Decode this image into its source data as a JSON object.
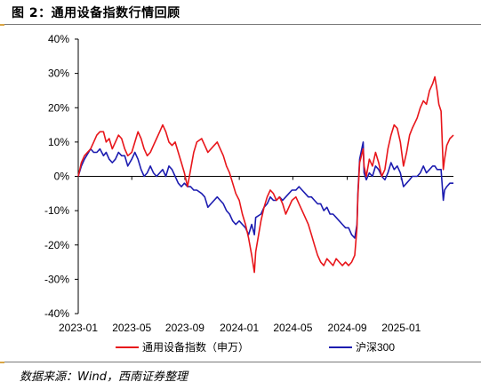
{
  "figure": {
    "title": "图 2：通用设备指数行情回顾",
    "source": "数据来源：Wind，西南证券整理"
  },
  "colors": {
    "series_1": "#e8161b",
    "series_2": "#1c1cb0",
    "axis": "#000000",
    "rule": "#7a7a7a",
    "corner_mark": "#d9a544"
  },
  "chart_data": {
    "type": "line",
    "title": "",
    "xlabel": "",
    "ylabel": "",
    "y_unit": "%",
    "ylim": [
      -40,
      40
    ],
    "y_ticks": [
      -40,
      -30,
      -20,
      -10,
      0,
      10,
      20,
      30,
      40
    ],
    "y_tick_labels": [
      "-40%",
      "-30%",
      "-20%",
      "-10%",
      "0%",
      "10%",
      "20%",
      "30%",
      "40%"
    ],
    "xlim": [
      "2023-01-03",
      "2025-04-30"
    ],
    "x_ticks": [
      "2023-01",
      "2023-05",
      "2023-09",
      "2024-01",
      "2024-05",
      "2024-09",
      "2025-01"
    ],
    "x_tick_dates": [
      "2023-01-03",
      "2023-05-04",
      "2023-09-01",
      "2024-01-02",
      "2024-05-02",
      "2024-09-02",
      "2025-01-02"
    ],
    "grid": false,
    "legend_position": "bottom",
    "series": [
      {
        "name": "通用设备指数（申万）",
        "color": "#e8161b",
        "points": [
          [
            "2023-01-03",
            0
          ],
          [
            "2023-01-10",
            4
          ],
          [
            "2023-01-17",
            6
          ],
          [
            "2023-01-31",
            8
          ],
          [
            "2023-02-07",
            10
          ],
          [
            "2023-02-14",
            12
          ],
          [
            "2023-02-21",
            13
          ],
          [
            "2023-03-01",
            13
          ],
          [
            "2023-03-07",
            10
          ],
          [
            "2023-03-14",
            11
          ],
          [
            "2023-03-21",
            8
          ],
          [
            "2023-03-28",
            10
          ],
          [
            "2023-04-04",
            12
          ],
          [
            "2023-04-11",
            11
          ],
          [
            "2023-04-18",
            8
          ],
          [
            "2023-04-25",
            6
          ],
          [
            "2023-05-04",
            7
          ],
          [
            "2023-05-11",
            10
          ],
          [
            "2023-05-18",
            13
          ],
          [
            "2023-05-25",
            11
          ],
          [
            "2023-06-01",
            8
          ],
          [
            "2023-06-08",
            6
          ],
          [
            "2023-06-15",
            7
          ],
          [
            "2023-06-22",
            9
          ],
          [
            "2023-06-29",
            11
          ],
          [
            "2023-07-06",
            13
          ],
          [
            "2023-07-13",
            15
          ],
          [
            "2023-07-20",
            13
          ],
          [
            "2023-07-27",
            10
          ],
          [
            "2023-08-03",
            9
          ],
          [
            "2023-08-10",
            10
          ],
          [
            "2023-08-17",
            7
          ],
          [
            "2023-08-24",
            4
          ],
          [
            "2023-08-31",
            1
          ],
          [
            "2023-09-07",
            -3
          ],
          [
            "2023-09-14",
            2
          ],
          [
            "2023-09-21",
            7
          ],
          [
            "2023-09-28",
            10
          ],
          [
            "2023-10-09",
            11
          ],
          [
            "2023-10-16",
            9
          ],
          [
            "2023-10-23",
            7
          ],
          [
            "2023-10-30",
            8
          ],
          [
            "2023-11-06",
            9
          ],
          [
            "2023-11-13",
            10
          ],
          [
            "2023-11-20",
            8
          ],
          [
            "2023-11-27",
            6
          ],
          [
            "2023-12-04",
            3
          ],
          [
            "2023-12-11",
            1
          ],
          [
            "2023-12-18",
            -2
          ],
          [
            "2023-12-25",
            -5
          ],
          [
            "2024-01-02",
            -7
          ],
          [
            "2024-01-09",
            -11
          ],
          [
            "2024-01-16",
            -14
          ],
          [
            "2024-01-23",
            -18
          ],
          [
            "2024-01-30",
            -23
          ],
          [
            "2024-02-05",
            -28
          ],
          [
            "2024-02-08",
            -22
          ],
          [
            "2024-02-20",
            -13
          ],
          [
            "2024-02-27",
            -9
          ],
          [
            "2024-03-05",
            -6
          ],
          [
            "2024-03-12",
            -4
          ],
          [
            "2024-03-19",
            -5
          ],
          [
            "2024-03-26",
            -7
          ],
          [
            "2024-04-02",
            -6
          ],
          [
            "2024-04-09",
            -8
          ],
          [
            "2024-04-16",
            -11
          ],
          [
            "2024-04-23",
            -9
          ],
          [
            "2024-04-30",
            -7
          ],
          [
            "2024-05-09",
            -6
          ],
          [
            "2024-05-16",
            -8
          ],
          [
            "2024-05-23",
            -10
          ],
          [
            "2024-05-30",
            -12
          ],
          [
            "2024-06-06",
            -14
          ],
          [
            "2024-06-13",
            -17
          ],
          [
            "2024-06-20",
            -20
          ],
          [
            "2024-06-27",
            -23
          ],
          [
            "2024-07-04",
            -25
          ],
          [
            "2024-07-11",
            -26
          ],
          [
            "2024-07-18",
            -24
          ],
          [
            "2024-07-25",
            -25
          ],
          [
            "2024-08-01",
            -26
          ],
          [
            "2024-08-08",
            -24
          ],
          [
            "2024-08-15",
            -25
          ],
          [
            "2024-08-22",
            -26
          ],
          [
            "2024-08-29",
            -25
          ],
          [
            "2024-09-05",
            -26
          ],
          [
            "2024-09-12",
            -25
          ],
          [
            "2024-09-19",
            -23
          ],
          [
            "2024-09-24",
            -15
          ],
          [
            "2024-09-26",
            -6
          ],
          [
            "2024-09-30",
            4
          ],
          [
            "2024-10-08",
            8
          ],
          [
            "2024-10-10",
            3
          ],
          [
            "2024-10-15",
            0
          ],
          [
            "2024-10-22",
            5
          ],
          [
            "2024-10-29",
            3
          ],
          [
            "2024-11-05",
            7
          ],
          [
            "2024-11-12",
            4
          ],
          [
            "2024-11-19",
            0
          ],
          [
            "2024-11-26",
            2
          ],
          [
            "2024-12-03",
            8
          ],
          [
            "2024-12-10",
            12
          ],
          [
            "2024-12-17",
            15
          ],
          [
            "2024-12-24",
            14
          ],
          [
            "2024-12-31",
            10
          ],
          [
            "2025-01-07",
            3
          ],
          [
            "2025-01-14",
            7
          ],
          [
            "2025-01-21",
            12
          ],
          [
            "2025-01-27",
            14
          ],
          [
            "2025-02-07",
            17
          ],
          [
            "2025-02-14",
            20
          ],
          [
            "2025-02-21",
            22
          ],
          [
            "2025-02-28",
            21
          ],
          [
            "2025-03-07",
            25
          ],
          [
            "2025-03-14",
            27
          ],
          [
            "2025-03-19",
            29
          ],
          [
            "2025-03-24",
            25
          ],
          [
            "2025-03-28",
            21
          ],
          [
            "2025-04-02",
            19
          ],
          [
            "2025-04-07",
            2
          ],
          [
            "2025-04-10",
            5
          ],
          [
            "2025-04-15",
            9
          ],
          [
            "2025-04-22",
            11
          ],
          [
            "2025-04-30",
            12
          ]
        ]
      },
      {
        "name": "沪深300",
        "color": "#1c1cb0",
        "points": [
          [
            "2023-01-03",
            0
          ],
          [
            "2023-01-10",
            3
          ],
          [
            "2023-01-17",
            5
          ],
          [
            "2023-01-31",
            8
          ],
          [
            "2023-02-07",
            7
          ],
          [
            "2023-02-14",
            7
          ],
          [
            "2023-02-21",
            8
          ],
          [
            "2023-03-01",
            6
          ],
          [
            "2023-03-07",
            7
          ],
          [
            "2023-03-14",
            5
          ],
          [
            "2023-03-21",
            4
          ],
          [
            "2023-03-28",
            5
          ],
          [
            "2023-04-04",
            7
          ],
          [
            "2023-04-11",
            6
          ],
          [
            "2023-04-18",
            6
          ],
          [
            "2023-04-25",
            3
          ],
          [
            "2023-05-04",
            5
          ],
          [
            "2023-05-11",
            7
          ],
          [
            "2023-05-18",
            5
          ],
          [
            "2023-05-25",
            2
          ],
          [
            "2023-06-01",
            0
          ],
          [
            "2023-06-08",
            1
          ],
          [
            "2023-06-15",
            3
          ],
          [
            "2023-06-22",
            1
          ],
          [
            "2023-06-29",
            0
          ],
          [
            "2023-07-06",
            1
          ],
          [
            "2023-07-13",
            2
          ],
          [
            "2023-07-20",
            0
          ],
          [
            "2023-07-27",
            3
          ],
          [
            "2023-08-03",
            2
          ],
          [
            "2023-08-10",
            0
          ],
          [
            "2023-08-17",
            -2
          ],
          [
            "2023-08-24",
            -3
          ],
          [
            "2023-08-31",
            -2
          ],
          [
            "2023-09-07",
            -3
          ],
          [
            "2023-09-14",
            -3
          ],
          [
            "2023-09-21",
            -4
          ],
          [
            "2023-09-28",
            -4
          ],
          [
            "2023-10-09",
            -5
          ],
          [
            "2023-10-16",
            -6
          ],
          [
            "2023-10-23",
            -9
          ],
          [
            "2023-10-30",
            -8
          ],
          [
            "2023-11-06",
            -7
          ],
          [
            "2023-11-13",
            -6
          ],
          [
            "2023-11-20",
            -7
          ],
          [
            "2023-11-27",
            -8
          ],
          [
            "2023-12-04",
            -10
          ],
          [
            "2023-12-11",
            -11
          ],
          [
            "2023-12-18",
            -13
          ],
          [
            "2023-12-25",
            -14
          ],
          [
            "2024-01-02",
            -13
          ],
          [
            "2024-01-09",
            -14
          ],
          [
            "2024-01-16",
            -15
          ],
          [
            "2024-01-23",
            -17
          ],
          [
            "2024-01-30",
            -14
          ],
          [
            "2024-02-05",
            -17
          ],
          [
            "2024-02-08",
            -12
          ],
          [
            "2024-02-20",
            -11
          ],
          [
            "2024-02-27",
            -9
          ],
          [
            "2024-03-05",
            -8
          ],
          [
            "2024-03-12",
            -6
          ],
          [
            "2024-03-19",
            -7
          ],
          [
            "2024-03-26",
            -7
          ],
          [
            "2024-04-02",
            -6
          ],
          [
            "2024-04-09",
            -7
          ],
          [
            "2024-04-16",
            -6
          ],
          [
            "2024-04-23",
            -5
          ],
          [
            "2024-04-30",
            -4
          ],
          [
            "2024-05-09",
            -4
          ],
          [
            "2024-05-16",
            -3
          ],
          [
            "2024-05-23",
            -4
          ],
          [
            "2024-05-30",
            -5
          ],
          [
            "2024-06-06",
            -6
          ],
          [
            "2024-06-13",
            -6
          ],
          [
            "2024-06-20",
            -7
          ],
          [
            "2024-06-27",
            -8
          ],
          [
            "2024-07-04",
            -8
          ],
          [
            "2024-07-11",
            -10
          ],
          [
            "2024-07-18",
            -9
          ],
          [
            "2024-07-25",
            -11
          ],
          [
            "2024-08-01",
            -11
          ],
          [
            "2024-08-08",
            -12
          ],
          [
            "2024-08-15",
            -13
          ],
          [
            "2024-08-22",
            -14
          ],
          [
            "2024-08-29",
            -15
          ],
          [
            "2024-09-05",
            -15
          ],
          [
            "2024-09-12",
            -17
          ],
          [
            "2024-09-19",
            -18
          ],
          [
            "2024-09-24",
            -14
          ],
          [
            "2024-09-26",
            -5
          ],
          [
            "2024-09-30",
            5
          ],
          [
            "2024-10-08",
            10
          ],
          [
            "2024-10-10",
            1
          ],
          [
            "2024-10-15",
            -1
          ],
          [
            "2024-10-22",
            1
          ],
          [
            "2024-10-29",
            0
          ],
          [
            "2024-11-05",
            3
          ],
          [
            "2024-11-12",
            2
          ],
          [
            "2024-11-19",
            0
          ],
          [
            "2024-11-26",
            -1
          ],
          [
            "2024-12-03",
            1
          ],
          [
            "2024-12-10",
            4
          ],
          [
            "2024-12-17",
            2
          ],
          [
            "2024-12-24",
            3
          ],
          [
            "2024-12-31",
            1
          ],
          [
            "2025-01-07",
            -3
          ],
          [
            "2025-01-14",
            -2
          ],
          [
            "2025-01-21",
            -1
          ],
          [
            "2025-01-27",
            0
          ],
          [
            "2025-02-07",
            0
          ],
          [
            "2025-02-14",
            1
          ],
          [
            "2025-02-21",
            3
          ],
          [
            "2025-02-28",
            1
          ],
          [
            "2025-03-07",
            2
          ],
          [
            "2025-03-14",
            3
          ],
          [
            "2025-03-19",
            3
          ],
          [
            "2025-03-24",
            2
          ],
          [
            "2025-03-28",
            2
          ],
          [
            "2025-04-02",
            2
          ],
          [
            "2025-04-07",
            -7
          ],
          [
            "2025-04-10",
            -4
          ],
          [
            "2025-04-15",
            -3
          ],
          [
            "2025-04-22",
            -2
          ],
          [
            "2025-04-30",
            -2
          ]
        ]
      }
    ]
  }
}
